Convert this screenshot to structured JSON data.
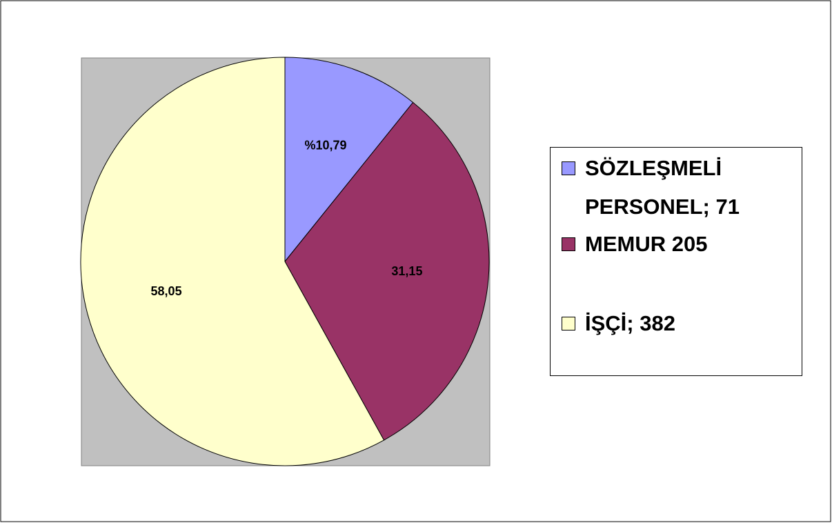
{
  "chart_data": {
    "type": "pie",
    "categories": [
      "SÖZLEŞMELİ PERSONEL; 71",
      "MEMUR 205",
      "İŞÇİ; 382"
    ],
    "values": [
      10.79,
      31.15,
      58.05
    ],
    "value_labels": [
      "%10,79",
      "31,15",
      "58,05"
    ],
    "colors": [
      "#9999ff",
      "#993366",
      "#ffffcc"
    ],
    "legend": "right"
  }
}
